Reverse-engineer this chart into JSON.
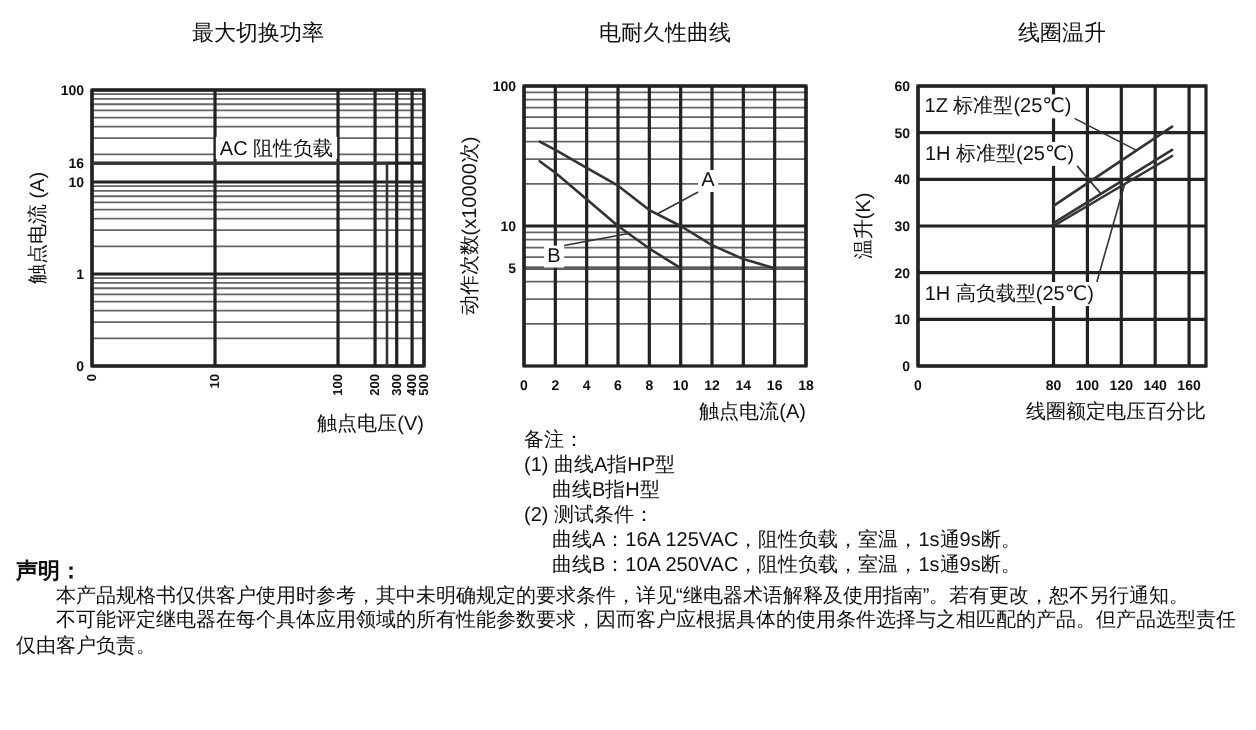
{
  "chart_data": [
    {
      "type": "line",
      "title": "最大切换功率",
      "xlabel": "触点电压(V)",
      "ylabel": "触点电流 (A)",
      "log": "xy",
      "grid": true,
      "xlim": [
        0,
        500
      ],
      "ylim": [
        0.1,
        100
      ],
      "xticks": [
        0,
        10,
        100,
        200,
        300,
        400,
        500
      ],
      "yticks": [
        {
          "value": 0.1,
          "label": "0"
        },
        1,
        10,
        16,
        100
      ],
      "series": [
        {
          "color": "#333333",
          "x": [
            1,
            250,
            250
          ],
          "values": [
            16,
            16,
            0.1
          ]
        }
      ],
      "annotations": [
        "AC 阻性负载"
      ]
    },
    {
      "type": "line",
      "title": "电耐久性曲线",
      "xlabel": "触点电流(A)",
      "ylabel": "动作次数(x10000次)",
      "log": "y",
      "grid": true,
      "xlim": [
        0,
        18
      ],
      "ylim": [
        1,
        100
      ],
      "xticks": [
        0,
        2,
        4,
        6,
        8,
        10,
        12,
        14,
        16,
        18
      ],
      "yticks": [
        5,
        10,
        100
      ],
      "series": [
        {
          "name": "A",
          "color": "#333333",
          "x": [
            1,
            2,
            4,
            6,
            8,
            10,
            12,
            14,
            16
          ],
          "values": [
            40,
            35,
            26,
            19.4,
            13,
            10,
            7.3,
            5.8,
            5
          ]
        },
        {
          "name": "B",
          "color": "#333333",
          "x": [
            1,
            2,
            4,
            6,
            8,
            10
          ],
          "values": [
            29,
            24,
            15.5,
            10,
            6.9,
            5
          ]
        }
      ],
      "annotations": [
        "备注：",
        "(1) 曲线A指HP型",
        "曲线B指H型",
        "(2) 测试条件：",
        "曲线A：16A 125VAC，阻性负载，室温，1s通9s断。",
        "曲线B：10A 250VAC，阻性负载，室温，1s通9s断。"
      ]
    },
    {
      "type": "line",
      "title": "线圈温升",
      "xlabel": "线圈额定电压百分比",
      "ylabel": "温升(K)",
      "grid": true,
      "xlim": [
        0,
        170
      ],
      "ylim": [
        0,
        60
      ],
      "xticks": [
        0,
        80,
        100,
        120,
        140,
        160
      ],
      "yticks": [
        0,
        10,
        20,
        30,
        40,
        50,
        60
      ],
      "series": [
        {
          "name": "1Z 标准型(25℃)",
          "color": "#333333",
          "x": [
            80,
            150
          ],
          "values": [
            34.3,
            51.3
          ]
        },
        {
          "name": "1H 标准型(25℃)",
          "color": "#333333",
          "x": [
            80,
            150
          ],
          "values": [
            30.6,
            46.3
          ]
        },
        {
          "name": "1H 高负载型(25℃)",
          "color": "#333333",
          "x": [
            80,
            150
          ],
          "values": [
            30,
            45
          ]
        }
      ]
    },
    {
      "type": "other",
      "title": "声明：",
      "annotations": [
        "本产品规格书仅供客户使用时参考，其中未明确规定的要求条件，详见“继电器术语解释及使用指南”。若有更改，恕不另行通知。",
        "不可能评定继电器在每个具体应用领域的所有性能参数要求，因而客户应根据具体的使用条件选择与之相匹配的产品。但产品选型责任仅由客户负责。"
      ]
    }
  ]
}
